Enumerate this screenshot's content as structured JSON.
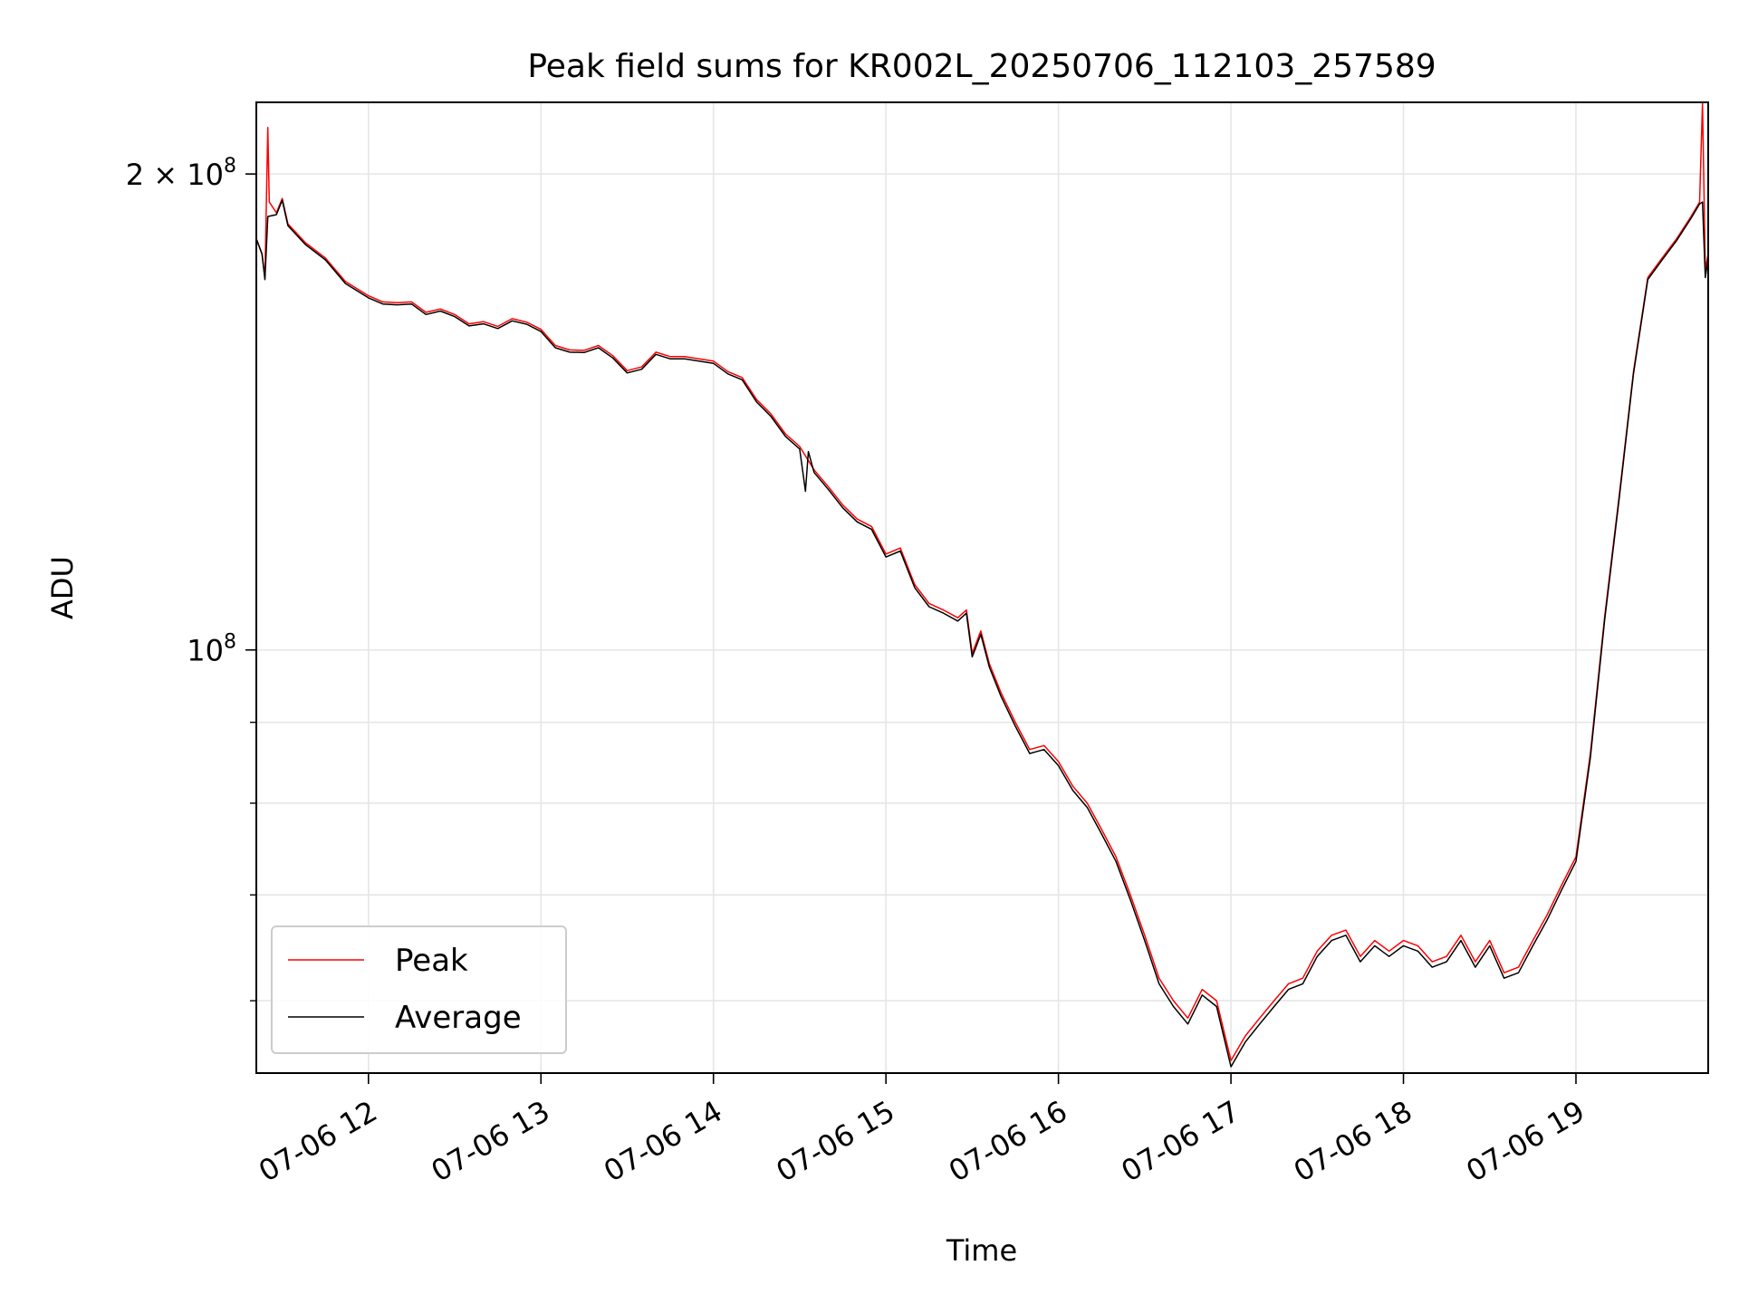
{
  "chart_data": {
    "type": "line",
    "title": "Peak field sums for KR002L_20250706_112103_257589",
    "xlabel": "Time",
    "ylabel": "ADU",
    "x_axis": {
      "type": "time",
      "range": [
        "2025-07-06T11:21:00",
        "2025-07-06T19:46:00"
      ],
      "ticks": [
        {
          "value": "2025-07-06T12:00",
          "label": "07-06 12"
        },
        {
          "value": "2025-07-06T13:00",
          "label": "07-06 13"
        },
        {
          "value": "2025-07-06T14:00",
          "label": "07-06 14"
        },
        {
          "value": "2025-07-06T15:00",
          "label": "07-06 15"
        },
        {
          "value": "2025-07-06T16:00",
          "label": "07-06 16"
        },
        {
          "value": "2025-07-06T17:00",
          "label": "07-06 17"
        },
        {
          "value": "2025-07-06T18:00",
          "label": "07-06 18"
        },
        {
          "value": "2025-07-06T19:00",
          "label": "07-06 19"
        }
      ]
    },
    "y_axis": {
      "scale": "log",
      "range": [
        54000000,
        222000000
      ],
      "major_ticks": [
        {
          "value": 100000000,
          "base": "10",
          "exp": "8",
          "mult": ""
        },
        {
          "value": 200000000,
          "base": "10",
          "exp": "8",
          "mult": "2 × "
        }
      ],
      "minor_ticks": [
        60000000,
        70000000,
        80000000,
        90000000
      ]
    },
    "grid": true,
    "legend": {
      "placement": "lower-left"
    },
    "series": [
      {
        "name": "Peak",
        "color": "#ff0000",
        "points": [
          [
            "2025-07-06T11:21",
            182000000
          ],
          [
            "2025-07-06T11:23",
            178000000
          ],
          [
            "2025-07-06T11:24",
            172000000
          ],
          [
            "2025-07-06T11:25",
            214000000
          ],
          [
            "2025-07-06T11:25:30",
            192000000
          ],
          [
            "2025-07-06T11:28",
            189000000
          ],
          [
            "2025-07-06T11:30",
            193000000
          ],
          [
            "2025-07-06T11:32",
            186000000
          ],
          [
            "2025-07-06T11:38",
            181000000
          ],
          [
            "2025-07-06T11:45",
            177000000
          ],
          [
            "2025-07-06T11:52",
            171000000
          ],
          [
            "2025-07-06T12:00",
            167500000
          ],
          [
            "2025-07-06T12:05",
            166000000
          ],
          [
            "2025-07-06T12:10",
            165800000
          ],
          [
            "2025-07-06T12:15",
            166000000
          ],
          [
            "2025-07-06T12:20",
            163500000
          ],
          [
            "2025-07-06T12:25",
            164300000
          ],
          [
            "2025-07-06T12:30",
            163000000
          ],
          [
            "2025-07-06T12:35",
            160800000
          ],
          [
            "2025-07-06T12:40",
            161300000
          ],
          [
            "2025-07-06T12:45",
            160200000
          ],
          [
            "2025-07-06T12:50",
            162000000
          ],
          [
            "2025-07-06T12:55",
            161200000
          ],
          [
            "2025-07-06T13:00",
            159500000
          ],
          [
            "2025-07-06T13:05",
            155800000
          ],
          [
            "2025-07-06T13:10",
            154800000
          ],
          [
            "2025-07-06T13:15",
            154700000
          ],
          [
            "2025-07-06T13:20",
            155800000
          ],
          [
            "2025-07-06T13:25",
            153500000
          ],
          [
            "2025-07-06T13:30",
            150200000
          ],
          [
            "2025-07-06T13:35",
            151000000
          ],
          [
            "2025-07-06T13:40",
            154300000
          ],
          [
            "2025-07-06T13:45",
            153300000
          ],
          [
            "2025-07-06T13:50",
            153300000
          ],
          [
            "2025-07-06T13:55",
            152800000
          ],
          [
            "2025-07-06T14:00",
            152300000
          ],
          [
            "2025-07-06T14:05",
            150000000
          ],
          [
            "2025-07-06T14:10",
            148700000
          ],
          [
            "2025-07-06T14:15",
            144000000
          ],
          [
            "2025-07-06T14:20",
            141000000
          ],
          [
            "2025-07-06T14:25",
            137000000
          ],
          [
            "2025-07-06T14:30",
            134500000
          ],
          [
            "2025-07-06T14:35",
            130000000
          ],
          [
            "2025-07-06T14:40",
            126800000
          ],
          [
            "2025-07-06T14:45",
            123500000
          ],
          [
            "2025-07-06T14:50",
            121000000
          ],
          [
            "2025-07-06T14:55",
            119700000
          ],
          [
            "2025-07-06T15:00",
            115000000
          ],
          [
            "2025-07-06T15:05",
            116000000
          ],
          [
            "2025-07-06T15:10",
            110000000
          ],
          [
            "2025-07-06T15:15",
            107000000
          ],
          [
            "2025-07-06T15:20",
            106000000
          ],
          [
            "2025-07-06T15:25",
            104800000
          ],
          [
            "2025-07-06T15:28",
            106000000
          ],
          [
            "2025-07-06T15:30",
            99500000
          ],
          [
            "2025-07-06T15:33",
            102800000
          ],
          [
            "2025-07-06T15:36",
            98000000
          ],
          [
            "2025-07-06T15:40",
            94000000
          ],
          [
            "2025-07-06T15:45",
            90000000
          ],
          [
            "2025-07-06T15:50",
            86500000
          ],
          [
            "2025-07-06T15:55",
            87000000
          ],
          [
            "2025-07-06T16:00",
            85000000
          ],
          [
            "2025-07-06T16:05",
            82000000
          ],
          [
            "2025-07-06T16:10",
            80000000
          ],
          [
            "2025-07-06T16:15",
            77000000
          ],
          [
            "2025-07-06T16:20",
            74000000
          ],
          [
            "2025-07-06T16:25",
            70000000
          ],
          [
            "2025-07-06T16:30",
            66000000
          ],
          [
            "2025-07-06T16:35",
            62000000
          ],
          [
            "2025-07-06T16:40",
            60000000
          ],
          [
            "2025-07-06T16:45",
            58500000
          ],
          [
            "2025-07-06T16:50",
            61000000
          ],
          [
            "2025-07-06T16:55",
            60000000
          ],
          [
            "2025-07-06T17:00",
            55000000
          ],
          [
            "2025-07-06T17:05",
            57000000
          ],
          [
            "2025-07-06T17:10",
            58500000
          ],
          [
            "2025-07-06T17:15",
            60000000
          ],
          [
            "2025-07-06T17:20",
            61500000
          ],
          [
            "2025-07-06T17:25",
            62000000
          ],
          [
            "2025-07-06T17:30",
            64500000
          ],
          [
            "2025-07-06T17:35",
            66000000
          ],
          [
            "2025-07-06T17:40",
            66500000
          ],
          [
            "2025-07-06T17:45",
            64000000
          ],
          [
            "2025-07-06T17:50",
            65500000
          ],
          [
            "2025-07-06T17:55",
            64500000
          ],
          [
            "2025-07-06T18:00",
            65500000
          ],
          [
            "2025-07-06T18:05",
            65000000
          ],
          [
            "2025-07-06T18:10",
            63500000
          ],
          [
            "2025-07-06T18:15",
            64000000
          ],
          [
            "2025-07-06T18:20",
            66000000
          ],
          [
            "2025-07-06T18:25",
            63500000
          ],
          [
            "2025-07-06T18:30",
            65500000
          ],
          [
            "2025-07-06T18:35",
            62500000
          ],
          [
            "2025-07-06T18:40",
            63000000
          ],
          [
            "2025-07-06T18:45",
            65500000
          ],
          [
            "2025-07-06T18:50",
            68000000
          ],
          [
            "2025-07-06T18:55",
            71000000
          ],
          [
            "2025-07-06T19:00",
            74000000
          ],
          [
            "2025-07-06T19:05",
            86000000
          ],
          [
            "2025-07-06T19:10",
            105000000
          ],
          [
            "2025-07-06T19:15",
            125000000
          ],
          [
            "2025-07-06T19:20",
            150000000
          ],
          [
            "2025-07-06T19:25",
            172000000
          ],
          [
            "2025-07-06T19:30",
            177000000
          ],
          [
            "2025-07-06T19:35",
            182000000
          ],
          [
            "2025-07-06T19:40",
            188000000
          ],
          [
            "2025-07-06T19:43",
            192000000
          ],
          [
            "2025-07-06T19:44",
            222000000
          ],
          [
            "2025-07-06T19:45",
            174000000
          ],
          [
            "2025-07-06T19:46",
            178000000
          ]
        ]
      },
      {
        "name": "Average",
        "color": "#000000",
        "points": [
          [
            "2025-07-06T11:21",
            182000000
          ],
          [
            "2025-07-06T11:23",
            178000000
          ],
          [
            "2025-07-06T11:24",
            171500000
          ],
          [
            "2025-07-06T11:25",
            188000000
          ],
          [
            "2025-07-06T11:28",
            188500000
          ],
          [
            "2025-07-06T11:30",
            192500000
          ],
          [
            "2025-07-06T11:32",
            185500000
          ],
          [
            "2025-07-06T11:38",
            180500000
          ],
          [
            "2025-07-06T11:45",
            176500000
          ],
          [
            "2025-07-06T11:52",
            170500000
          ],
          [
            "2025-07-06T12:00",
            167000000
          ],
          [
            "2025-07-06T12:05",
            165500000
          ],
          [
            "2025-07-06T12:10",
            165300000
          ],
          [
            "2025-07-06T12:15",
            165500000
          ],
          [
            "2025-07-06T12:20",
            163000000
          ],
          [
            "2025-07-06T12:25",
            163800000
          ],
          [
            "2025-07-06T12:30",
            162500000
          ],
          [
            "2025-07-06T12:35",
            160300000
          ],
          [
            "2025-07-06T12:40",
            160800000
          ],
          [
            "2025-07-06T12:45",
            159700000
          ],
          [
            "2025-07-06T12:50",
            161500000
          ],
          [
            "2025-07-06T12:55",
            160700000
          ],
          [
            "2025-07-06T13:00",
            159000000
          ],
          [
            "2025-07-06T13:05",
            155300000
          ],
          [
            "2025-07-06T13:10",
            154300000
          ],
          [
            "2025-07-06T13:15",
            154200000
          ],
          [
            "2025-07-06T13:20",
            155300000
          ],
          [
            "2025-07-06T13:25",
            153000000
          ],
          [
            "2025-07-06T13:30",
            149700000
          ],
          [
            "2025-07-06T13:35",
            150500000
          ],
          [
            "2025-07-06T13:40",
            153800000
          ],
          [
            "2025-07-06T13:45",
            152800000
          ],
          [
            "2025-07-06T13:50",
            152800000
          ],
          [
            "2025-07-06T13:55",
            152300000
          ],
          [
            "2025-07-06T14:00",
            151800000
          ],
          [
            "2025-07-06T14:05",
            149500000
          ],
          [
            "2025-07-06T14:10",
            148200000
          ],
          [
            "2025-07-06T14:15",
            143500000
          ],
          [
            "2025-07-06T14:20",
            140500000
          ],
          [
            "2025-07-06T14:25",
            136500000
          ],
          [
            "2025-07-06T14:30",
            134000000
          ],
          [
            "2025-07-06T14:32",
            126000000
          ],
          [
            "2025-07-06T14:33",
            133500000
          ],
          [
            "2025-07-06T14:35",
            129500000
          ],
          [
            "2025-07-06T14:40",
            126300000
          ],
          [
            "2025-07-06T14:45",
            123000000
          ],
          [
            "2025-07-06T14:50",
            120500000
          ],
          [
            "2025-07-06T14:55",
            119200000
          ],
          [
            "2025-07-06T15:00",
            114500000
          ],
          [
            "2025-07-06T15:05",
            115500000
          ],
          [
            "2025-07-06T15:10",
            109500000
          ],
          [
            "2025-07-06T15:15",
            106500000
          ],
          [
            "2025-07-06T15:20",
            105500000
          ],
          [
            "2025-07-06T15:25",
            104300000
          ],
          [
            "2025-07-06T15:28",
            105500000
          ],
          [
            "2025-07-06T15:30",
            99000000
          ],
          [
            "2025-07-06T15:33",
            102300000
          ],
          [
            "2025-07-06T15:36",
            97500000
          ],
          [
            "2025-07-06T15:40",
            93500000
          ],
          [
            "2025-07-06T15:45",
            89500000
          ],
          [
            "2025-07-06T15:50",
            86000000
          ],
          [
            "2025-07-06T15:55",
            86500000
          ],
          [
            "2025-07-06T16:00",
            84500000
          ],
          [
            "2025-07-06T16:05",
            81500000
          ],
          [
            "2025-07-06T16:10",
            79500000
          ],
          [
            "2025-07-06T16:15",
            76500000
          ],
          [
            "2025-07-06T16:20",
            73500000
          ],
          [
            "2025-07-06T16:25",
            69500000
          ],
          [
            "2025-07-06T16:30",
            65500000
          ],
          [
            "2025-07-06T16:35",
            61500000
          ],
          [
            "2025-07-06T16:40",
            59500000
          ],
          [
            "2025-07-06T16:45",
            58000000
          ],
          [
            "2025-07-06T16:50",
            60500000
          ],
          [
            "2025-07-06T16:55",
            59500000
          ],
          [
            "2025-07-06T17:00",
            54500000
          ],
          [
            "2025-07-06T17:05",
            56500000
          ],
          [
            "2025-07-06T17:10",
            58000000
          ],
          [
            "2025-07-06T17:15",
            59500000
          ],
          [
            "2025-07-06T17:20",
            61000000
          ],
          [
            "2025-07-06T17:25",
            61500000
          ],
          [
            "2025-07-06T17:30",
            64000000
          ],
          [
            "2025-07-06T17:35",
            65500000
          ],
          [
            "2025-07-06T17:40",
            66000000
          ],
          [
            "2025-07-06T17:45",
            63500000
          ],
          [
            "2025-07-06T17:50",
            65000000
          ],
          [
            "2025-07-06T17:55",
            64000000
          ],
          [
            "2025-07-06T18:00",
            65000000
          ],
          [
            "2025-07-06T18:05",
            64500000
          ],
          [
            "2025-07-06T18:10",
            63000000
          ],
          [
            "2025-07-06T18:15",
            63500000
          ],
          [
            "2025-07-06T18:20",
            65500000
          ],
          [
            "2025-07-06T18:25",
            63000000
          ],
          [
            "2025-07-06T18:30",
            65000000
          ],
          [
            "2025-07-06T18:35",
            62000000
          ],
          [
            "2025-07-06T18:40",
            62500000
          ],
          [
            "2025-07-06T18:45",
            65000000
          ],
          [
            "2025-07-06T18:50",
            67500000
          ],
          [
            "2025-07-06T18:55",
            70500000
          ],
          [
            "2025-07-06T19:00",
            73500000
          ],
          [
            "2025-07-06T19:05",
            85500000
          ],
          [
            "2025-07-06T19:10",
            104500000
          ],
          [
            "2025-07-06T19:15",
            124500000
          ],
          [
            "2025-07-06T19:20",
            149500000
          ],
          [
            "2025-07-06T19:25",
            171500000
          ],
          [
            "2025-07-06T19:30",
            176500000
          ],
          [
            "2025-07-06T19:35",
            181500000
          ],
          [
            "2025-07-06T19:40",
            187500000
          ],
          [
            "2025-07-06T19:43",
            191500000
          ],
          [
            "2025-07-06T19:44",
            192000000
          ],
          [
            "2025-07-06T19:45",
            172000000
          ],
          [
            "2025-07-06T19:46",
            177000000
          ]
        ]
      }
    ]
  }
}
